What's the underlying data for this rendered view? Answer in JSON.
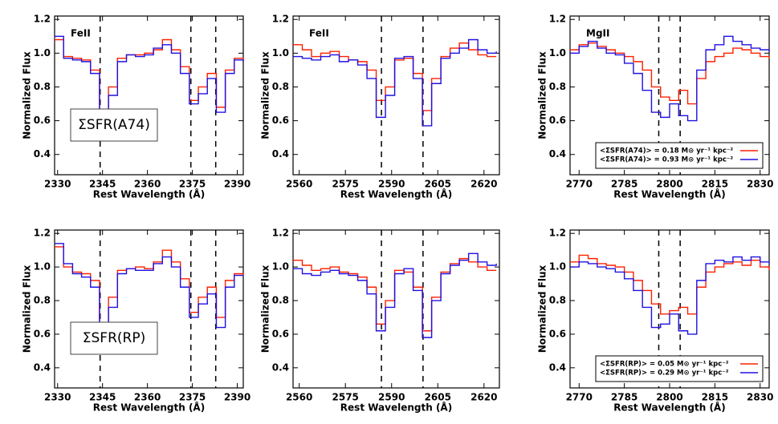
{
  "chart_data": [
    {
      "type": "line",
      "annotation": "FeII",
      "boxed_annotation": "ΣSFR(A74)",
      "xlabel": "Rest Wavelength (Å)",
      "ylabel": "Normalized Flux",
      "x": [
        2329,
        2332,
        2335,
        2338,
        2341,
        2344,
        2347,
        2350,
        2353,
        2356,
        2359,
        2362,
        2365,
        2368,
        2371,
        2374,
        2377,
        2380,
        2383,
        2386,
        2389,
        2392
      ],
      "series": [
        {
          "color": "#ff2000",
          "values": [
            1.08,
            0.98,
            0.97,
            0.96,
            0.9,
            0.62,
            0.8,
            0.97,
            0.99,
            0.99,
            1.0,
            1.02,
            1.08,
            1.02,
            0.92,
            0.72,
            0.8,
            0.88,
            0.68,
            0.9,
            0.97,
            0.95
          ]
        },
        {
          "color": "#2010e0",
          "values": [
            1.1,
            0.97,
            0.96,
            0.95,
            0.88,
            0.58,
            0.75,
            0.95,
            0.99,
            0.98,
            0.99,
            1.03,
            1.05,
            1.0,
            0.88,
            0.7,
            0.76,
            0.85,
            0.65,
            0.88,
            0.96,
            0.95
          ]
        }
      ],
      "vlines": [
        2344.2,
        2374.5,
        2382.8
      ],
      "xlim": [
        2329,
        2392
      ],
      "ylim": [
        0.28,
        1.22
      ],
      "xticks": [
        2330,
        2345,
        2360,
        2375,
        2390
      ],
      "yticks": [
        0.4,
        0.6,
        0.8,
        {
          "value": 1,
          "label": "1.0"
        },
        1.2
      ]
    },
    {
      "type": "line",
      "annotation": "FeII",
      "xlabel": "Rest Wavelength (Å)",
      "ylabel": "Normalized Flux",
      "x": [
        2558,
        2561,
        2564,
        2567,
        2570,
        2573,
        2576,
        2579,
        2582,
        2585,
        2588,
        2591,
        2594,
        2597,
        2600,
        2603,
        2606,
        2609,
        2612,
        2615,
        2618,
        2621,
        2624
      ],
      "series": [
        {
          "color": "#ff2000",
          "values": [
            1.05,
            1.02,
            0.98,
            1.0,
            1.01,
            0.98,
            0.96,
            0.95,
            0.9,
            0.72,
            0.8,
            0.96,
            0.97,
            0.88,
            0.66,
            0.85,
            0.98,
            1.03,
            1.06,
            1.02,
            0.99,
            0.98,
            0.98
          ]
        },
        {
          "color": "#2010e0",
          "values": [
            0.98,
            0.97,
            0.96,
            0.98,
            0.99,
            0.95,
            0.96,
            0.93,
            0.85,
            0.62,
            0.75,
            0.97,
            0.98,
            0.85,
            0.57,
            0.82,
            0.97,
            1.0,
            1.03,
            1.08,
            1.02,
            1.0,
            1.01
          ]
        }
      ],
      "vlines": [
        2586.7,
        2600.2
      ],
      "xlim": [
        2558,
        2625
      ],
      "ylim": [
        0.28,
        1.22
      ],
      "xticks": [
        2560,
        2575,
        2590,
        2605,
        2620
      ],
      "yticks": [
        0.4,
        0.6,
        0.8,
        {
          "value": 1,
          "label": "1.0"
        },
        1.2
      ]
    },
    {
      "type": "line",
      "annotation": "MgII",
      "xlabel": "Rest Wavelength (Å)",
      "ylabel": "Normalized Flux",
      "legend": "lower right",
      "x": [
        2767,
        2770,
        2773,
        2776,
        2779,
        2782,
        2785,
        2788,
        2791,
        2794,
        2797,
        2800,
        2803,
        2806,
        2809,
        2812,
        2815,
        2818,
        2821,
        2824,
        2827,
        2830,
        2833
      ],
      "series": [
        {
          "name": "<ΣSFR(A74)> = 0.18 M⊙ yr⁻¹ kpc⁻²",
          "color": "#ff2000",
          "values": [
            1.02,
            1.05,
            1.06,
            1.04,
            1.02,
            1.0,
            0.98,
            0.95,
            0.9,
            0.8,
            0.74,
            0.72,
            0.78,
            0.7,
            0.85,
            0.95,
            0.98,
            1.0,
            1.03,
            1.02,
            1.0,
            0.98,
            0.97
          ]
        },
        {
          "name": "<ΣSFR(A74)> = 0.93 M⊙ yr⁻¹ kpc⁻²",
          "color": "#2010e0",
          "values": [
            1.0,
            1.04,
            1.07,
            1.03,
            1.0,
            0.99,
            0.94,
            0.88,
            0.78,
            0.65,
            0.62,
            0.7,
            0.63,
            0.6,
            0.9,
            1.02,
            1.05,
            1.1,
            1.07,
            1.05,
            1.03,
            1.02,
            1.01
          ]
        }
      ],
      "vlines": [
        2796.4,
        2803.5
      ],
      "xlim": [
        2767,
        2833
      ],
      "ylim": [
        0.28,
        1.22
      ],
      "xticks": [
        2770,
        2785,
        2800,
        2815,
        2830
      ],
      "yticks": [
        0.4,
        0.6,
        0.8,
        {
          "value": 1,
          "label": "1.0"
        },
        1.2
      ]
    },
    {
      "type": "line",
      "boxed_annotation": "ΣSFR(RP)",
      "xlabel": "Rest Wavelength (Å)",
      "ylabel": "Normalized Flux",
      "x": [
        2329,
        2332,
        2335,
        2338,
        2341,
        2344,
        2347,
        2350,
        2353,
        2356,
        2359,
        2362,
        2365,
        2368,
        2371,
        2374,
        2377,
        2380,
        2383,
        2386,
        2389,
        2392
      ],
      "series": [
        {
          "color": "#ff2000",
          "values": [
            1.12,
            1.0,
            0.97,
            0.96,
            0.92,
            0.63,
            0.82,
            0.98,
            0.99,
            1.0,
            0.99,
            1.03,
            1.1,
            1.03,
            0.93,
            0.73,
            0.82,
            0.88,
            0.7,
            0.92,
            0.96,
            0.95
          ]
        },
        {
          "color": "#2010e0",
          "values": [
            1.14,
            1.02,
            0.96,
            0.94,
            0.88,
            0.58,
            0.76,
            0.96,
            0.99,
            0.98,
            0.98,
            1.02,
            1.06,
            1.0,
            0.88,
            0.7,
            0.78,
            0.84,
            0.64,
            0.88,
            0.95,
            0.95
          ]
        }
      ],
      "vlines": [
        2344.2,
        2374.5,
        2382.8
      ],
      "xlim": [
        2329,
        2392
      ],
      "ylim": [
        0.28,
        1.22
      ],
      "xticks": [
        2330,
        2345,
        2360,
        2375,
        2390
      ],
      "yticks": [
        0.4,
        0.6,
        0.8,
        {
          "value": 1,
          "label": "1.0"
        },
        1.2
      ]
    },
    {
      "type": "line",
      "xlabel": "Rest Wavelength (Å)",
      "ylabel": "Normalized Flux",
      "x": [
        2558,
        2561,
        2564,
        2567,
        2570,
        2573,
        2576,
        2579,
        2582,
        2585,
        2588,
        2591,
        2594,
        2597,
        2600,
        2603,
        2606,
        2609,
        2612,
        2615,
        2618,
        2621,
        2624
      ],
      "series": [
        {
          "color": "#ff2000",
          "values": [
            1.04,
            1.01,
            0.98,
            0.99,
            1.0,
            0.97,
            0.96,
            0.94,
            0.88,
            0.66,
            0.8,
            0.98,
            0.97,
            0.88,
            0.62,
            0.82,
            0.97,
            1.02,
            1.05,
            1.03,
            1.0,
            0.98,
            0.98
          ]
        },
        {
          "color": "#2010e0",
          "values": [
            0.99,
            0.96,
            0.95,
            0.97,
            0.98,
            0.96,
            0.95,
            0.92,
            0.84,
            0.62,
            0.76,
            0.96,
            0.99,
            0.86,
            0.58,
            0.8,
            0.96,
            1.01,
            1.04,
            1.08,
            1.03,
            1.01,
            1.02
          ]
        }
      ],
      "vlines": [
        2586.7,
        2600.2
      ],
      "xlim": [
        2558,
        2625
      ],
      "ylim": [
        0.28,
        1.22
      ],
      "xticks": [
        2560,
        2575,
        2590,
        2605,
        2620
      ],
      "yticks": [
        0.4,
        0.6,
        0.8,
        {
          "value": 1,
          "label": "1.0"
        },
        1.2
      ]
    },
    {
      "type": "line",
      "xlabel": "Rest Wavelength (Å)",
      "ylabel": "Normalized Flux",
      "legend": "lower right",
      "x": [
        2767,
        2770,
        2773,
        2776,
        2779,
        2782,
        2785,
        2788,
        2791,
        2794,
        2797,
        2800,
        2803,
        2806,
        2809,
        2812,
        2815,
        2818,
        2821,
        2824,
        2827,
        2830,
        2833
      ],
      "series": [
        {
          "name": "<ΣSFR(RP)> = 0.05 M⊙ yr⁻¹ kpc⁻²",
          "color": "#ff2000",
          "values": [
            1.03,
            1.07,
            1.05,
            1.02,
            1.01,
            1.0,
            0.97,
            0.92,
            0.86,
            0.78,
            0.72,
            0.74,
            0.76,
            0.72,
            0.88,
            0.97,
            1.0,
            1.02,
            1.03,
            1.01,
            1.04,
            1.0,
            0.98
          ]
        },
        {
          "name": "<ΣSFR(RP)> = 0.29 M⊙ yr⁻¹ kpc⁻²",
          "color": "#2010e0",
          "values": [
            1.0,
            1.03,
            1.02,
            1.0,
            0.99,
            0.97,
            0.93,
            0.86,
            0.76,
            0.64,
            0.66,
            0.72,
            0.62,
            0.6,
            0.92,
            1.02,
            1.04,
            1.03,
            1.06,
            1.04,
            1.06,
            1.03,
            1.02
          ]
        }
      ],
      "vlines": [
        2796.4,
        2803.5
      ],
      "xlim": [
        2767,
        2833
      ],
      "ylim": [
        0.28,
        1.22
      ],
      "xticks": [
        2770,
        2785,
        2800,
        2815,
        2830
      ],
      "yticks": [
        0.4,
        0.6,
        0.8,
        {
          "value": 1,
          "label": "1.0"
        },
        1.2
      ]
    }
  ]
}
